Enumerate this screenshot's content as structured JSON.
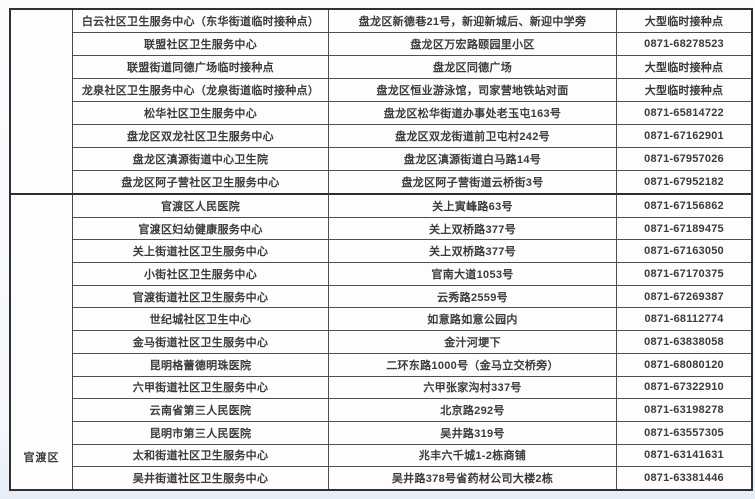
{
  "page": {
    "bg_color": "#f4f7fb",
    "table_bg_color": "#fdfdfe",
    "border_color": "#2f2f2f",
    "inner_border_color": "#4f4f4f",
    "text_color": "#3b3b3b"
  },
  "table": {
    "description": "vaccination-site-list-table",
    "sections": [
      {
        "district": "",
        "rows": [
          [
            "白云社区卫生服务中心（东华街道临时接种点）",
            "盘龙区新德巷21号，新迎新城后、新迎中学旁",
            "大型临时接种点"
          ],
          [
            "联盟社区卫生服务中心",
            "盘龙区万宏路颐园里小区",
            "0871-68278523"
          ],
          [
            "联盟街道同德广场临时接种点",
            "盘龙区同德广场",
            "大型临时接种点"
          ],
          [
            "龙泉社区卫生服务中心（龙泉街道临时接种点）",
            "盘龙区恒业游泳馆，司家营地铁站对面",
            "大型临时接种点"
          ],
          [
            "松华社区卫生服务中心",
            "盘龙区松华街道办事处老玉屯163号",
            "0871-65814722"
          ],
          [
            "盘龙区双龙社区卫生服务中心",
            "盘龙区双龙街道前卫屯村242号",
            "0871-67162901"
          ],
          [
            "盘龙区滇源街道中心卫生院",
            "盘龙区滇源街道白马路14号",
            "0871-67957026"
          ],
          [
            "盘龙区阿子营社区卫生服务中心",
            "盘龙区阿子营街道云桥街3号",
            "0871-67952182"
          ]
        ]
      },
      {
        "district": "官渡区",
        "rows": [
          [
            "官渡区人民医院",
            "关上寅峰路63号",
            "0871-67156862"
          ],
          [
            "官渡区妇幼健康服务中心",
            "关上双桥路377号",
            "0871-67189475"
          ],
          [
            "关上街道社区卫生服务中心",
            "关上双桥路377号",
            "0871-67163050"
          ],
          [
            "小街社区卫生服务中心",
            "官南大道1053号",
            "0871-67170375"
          ],
          [
            "官渡街道社区卫生服务中心",
            "云秀路2559号",
            "0871-67269387"
          ],
          [
            "世纪城社区卫生中心",
            "如意路如意公园内",
            "0871-68112774"
          ],
          [
            "金马街道社区卫生服务中心",
            "金汁河埂下",
            "0871-63838058"
          ],
          [
            "昆明格蕾德明珠医院",
            "二环东路1000号（金马立交桥旁）",
            "0871-68080120"
          ],
          [
            "六甲街道社区卫生服务中心",
            "六甲张家沟村337号",
            "0871-67322910"
          ],
          [
            "云南省第三人民医院",
            "北京路292号",
            "0871-63198278"
          ],
          [
            "昆明市第三人民医院",
            "吴井路319号",
            "0871-63557305"
          ],
          [
            "太和街道社区卫生服务中心",
            "兆丰六千城1-2栋商铺",
            "0871-63141631"
          ],
          [
            "吴井街道社区卫生服务中心",
            "吴井路378号省药材公司大楼2栋",
            "0871-63381446"
          ]
        ]
      }
    ]
  }
}
